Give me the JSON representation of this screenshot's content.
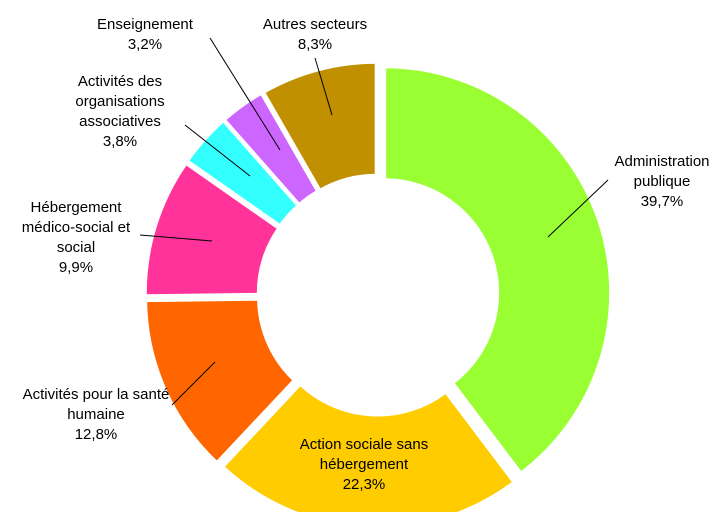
{
  "chart_data": {
    "type": "donut",
    "categories": [
      "Administration publique",
      "Action sociale sans hébergement",
      "Activités pour la santé humaine",
      "Hébergement médico-social et social",
      "Activités des organisations associatives",
      "Enseignement",
      "Autres secteurs"
    ],
    "values": [
      39.7,
      22.3,
      12.8,
      9.9,
      3.8,
      3.2,
      8.3
    ],
    "value_labels": [
      "39,7%",
      "22,3%",
      "12,8%",
      "9,9%",
      "3,8%",
      "3,2%",
      "8,3%"
    ],
    "colors": [
      "#99ff33",
      "#ffcc00",
      "#ff6600",
      "#ff3399",
      "#33ffff",
      "#cc66ff",
      "#c09000"
    ]
  }
}
